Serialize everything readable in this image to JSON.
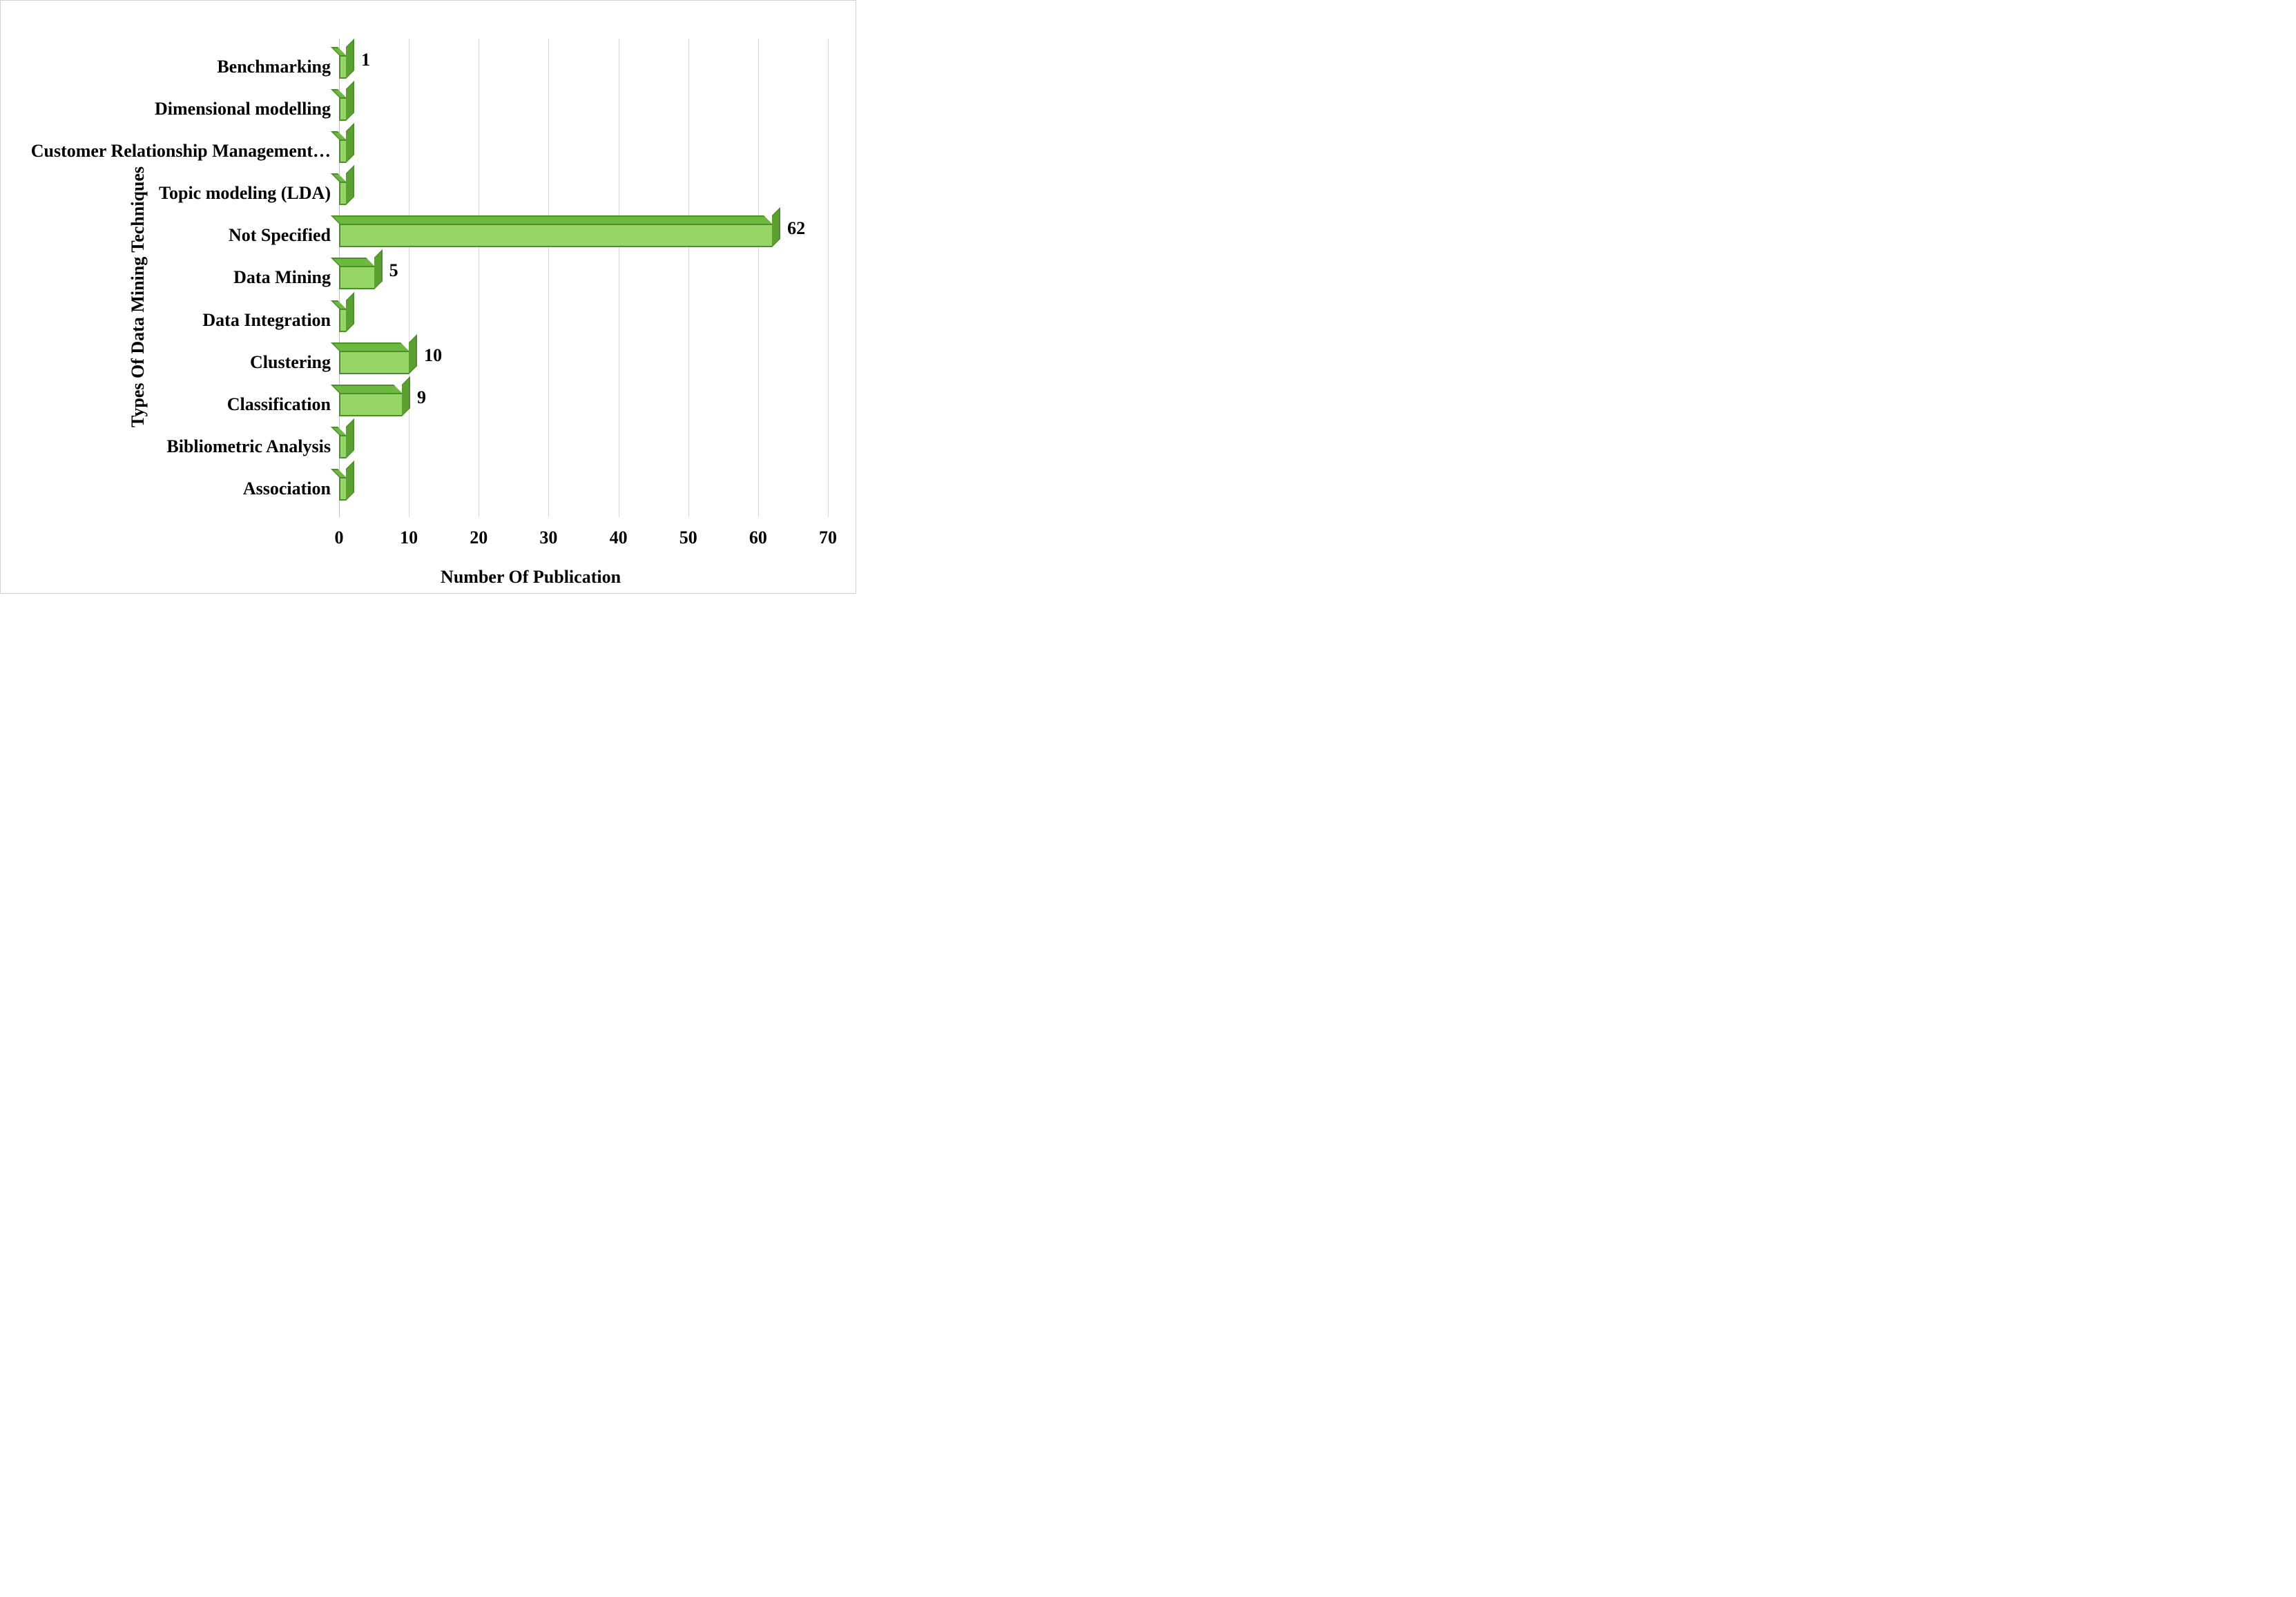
{
  "chart": {
    "type": "bar-horizontal-3d",
    "y_axis_title": "Types Of Data Mining Techniques",
    "x_axis_title": "Number Of Publication",
    "xlim": [
      0,
      70
    ],
    "xtick_step": 10,
    "xticks": [
      0,
      10,
      20,
      30,
      40,
      50,
      60,
      70
    ],
    "categories": [
      "Benchmarking",
      "Dimensional modelling",
      "Customer Relationship Management…",
      "Topic modeling (LDA)",
      "Not Specified",
      "Data Mining",
      "Data Integration",
      "Clustering",
      "Classification",
      "Bibliometric Analysis",
      "Association"
    ],
    "values": [
      1,
      1,
      1,
      1,
      62,
      5,
      1,
      10,
      9,
      1,
      1
    ],
    "show_value_labels": [
      true,
      false,
      false,
      false,
      true,
      true,
      false,
      true,
      true,
      false,
      false
    ],
    "bar_fill_color": "#95d667",
    "bar_top_color": "#6db83e",
    "bar_side_color": "#5ba132",
    "bar_stroke_color": "#4a8f2a",
    "background_color": "#ffffff",
    "grid_color": "#d8d8d8",
    "border_color": "#d0d0d0",
    "label_fontsize": 26,
    "label_fontweight": "bold",
    "font_family": "Georgia, 'Times New Roman', serif"
  }
}
